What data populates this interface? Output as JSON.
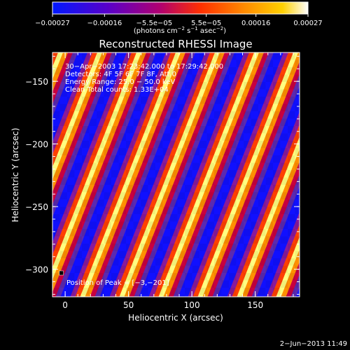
{
  "chart_data": {
    "type": "heatmap",
    "title": "Reconstructed RHESSI Image",
    "xlabel": "Heliocentric X (arcsec)",
    "ylabel": "Heliocentric Y (arcsec)",
    "xlim": [
      -10,
      185
    ],
    "ylim": [
      -322,
      -127
    ],
    "xticks": [
      {
        "value": 0,
        "label": "0"
      },
      {
        "value": 50,
        "label": "50"
      },
      {
        "value": 100,
        "label": "100"
      },
      {
        "value": 150,
        "label": "150"
      }
    ],
    "yticks": [
      {
        "value": -150,
        "label": "−150"
      },
      {
        "value": -200,
        "label": "−200"
      },
      {
        "value": -250,
        "label": "−250"
      },
      {
        "value": -300,
        "label": "−300"
      }
    ],
    "colorbar": {
      "range": [
        -0.00027,
        0.00027
      ],
      "ticks": [
        {
          "value": -0.00027,
          "label": "−0.00027"
        },
        {
          "value": -0.00016,
          "label": "−0.00016"
        },
        {
          "value": -5.5e-05,
          "label": "−5.5e−05"
        },
        {
          "value": 5.5e-05,
          "label": "5.5e−05"
        },
        {
          "value": 0.00016,
          "label": "0.00016"
        },
        {
          "value": 0.00027,
          "label": "0.00027"
        }
      ],
      "unit_base": "(photons cm",
      "unit_exp1": "−2",
      "unit_mid": " s",
      "unit_exp2": "−1",
      "unit_mid2": " asec",
      "unit_exp3": "−2",
      "unit_end": ")",
      "colors": [
        "#0018ff",
        "#5a00c8",
        "#b00070",
        "#ff3000",
        "#ff8a00",
        "#ffd000",
        "#ffffff"
      ]
    },
    "info_lines": [
      "30−Apr−2003 17:23:42.000 to 17:29:42.000",
      "Detectors: 4F 5F 6F 7F 8F, Att 0",
      "Energy Range: 25.0 − 50.0 keV",
      "Clean     Total counts: 1.33E+04"
    ],
    "peak_label": "Position of Peak = [−3,−201]",
    "peak": [
      -3,
      -201
    ],
    "pattern_colors": [
      "#1010ff",
      "#5a2ab0",
      "#8a1a9a",
      "#c80040",
      "#ff4000",
      "#ff9000",
      "#ffd000",
      "#ffff80"
    ],
    "timestamp": "2−Jun−2013 11:49"
  }
}
